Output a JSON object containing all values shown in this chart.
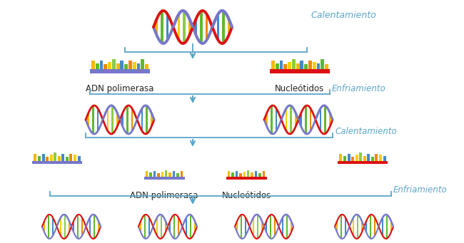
{
  "bg_color": "#ffffff",
  "text_color_blue": "#5aa5c8",
  "text_color_dark": "#222222",
  "labels": {
    "calentamiento1": "Calentamiento",
    "enfriamiento1": "Enfriamiento",
    "calentamiento2": "Calentamiento",
    "adn1": "ADN polimerasa",
    "nucleotidos1": "Nucleótidos",
    "adn2": "ADN polimerasa",
    "nucleotidos2": "Nucleótidos",
    "enfriamiento2": "Enfriamiento"
  },
  "arrow_color": "#5aa5c8",
  "line_color": "#5aa5c8",
  "strand_red": "#dd1111",
  "strand_purp": "#7777cc",
  "bases": [
    "#f5b800",
    "#60b830",
    "#4488cc",
    "#ee8800",
    "#f5d000",
    "#88cc44",
    "#f5b800",
    "#4488cc",
    "#60b830",
    "#ee8800",
    "#f5d000",
    "#4488cc",
    "#60b830",
    "#f5b800",
    "#ee8800",
    "#4488cc"
  ]
}
